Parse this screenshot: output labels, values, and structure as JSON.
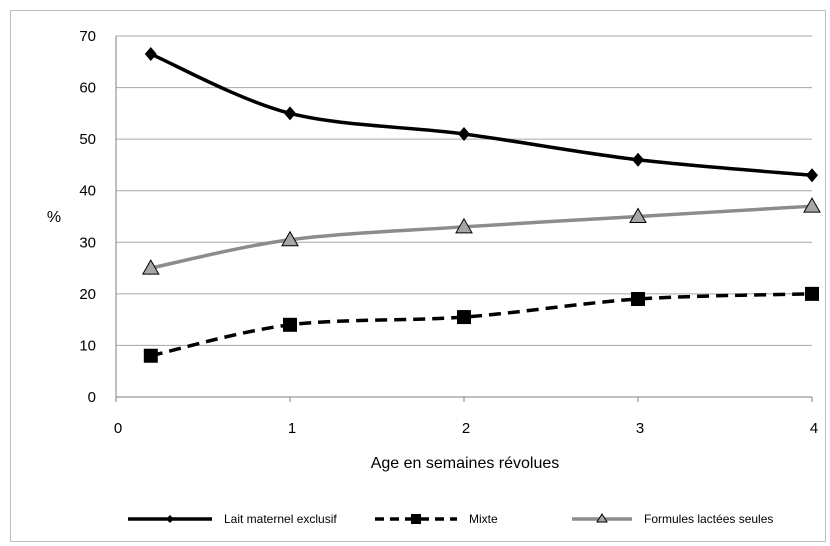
{
  "chart_data": {
    "type": "line",
    "title": "",
    "xlabel": "Age en semaines révolues",
    "ylabel": "%",
    "xlim": [
      0,
      4
    ],
    "ylim": [
      0,
      70
    ],
    "xticks": [
      0,
      1,
      2,
      3,
      4
    ],
    "yticks": [
      0,
      10,
      20,
      30,
      40,
      50,
      60,
      70
    ],
    "grid": "horizontal",
    "legend_position": "bottom",
    "series": [
      {
        "name": "Lait maternel exclusif",
        "color": "#000000",
        "line_style": "solid",
        "marker": "diamond",
        "x": [
          0.2,
          1,
          2,
          3,
          4
        ],
        "y": [
          66.5,
          55,
          51,
          46,
          43
        ]
      },
      {
        "name": "Mixte",
        "color": "#000000",
        "line_style": "dashed",
        "marker": "square",
        "x": [
          0.2,
          1,
          2,
          3,
          4
        ],
        "y": [
          8,
          14,
          15.5,
          19,
          20
        ]
      },
      {
        "name": "Formules lactées seules",
        "color": "#8c8c8c",
        "line_style": "solid",
        "marker": "triangle",
        "x": [
          0.2,
          1,
          2,
          3,
          4
        ],
        "y": [
          25,
          30.5,
          33,
          35,
          37
        ]
      }
    ]
  }
}
